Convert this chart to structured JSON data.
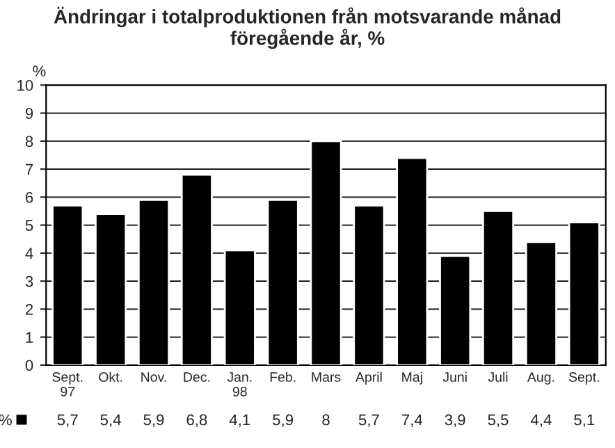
{
  "chart_data": {
    "type": "bar",
    "title": "Ändringar i totalproduktionen från motsvarande månad\nföregående år, %",
    "ylabel": "%",
    "categories": [
      "Sept.\n97",
      "Okt.",
      "Nov.",
      "Dec.",
      "Jan.\n98",
      "Feb.",
      "Mars",
      "April",
      "Maj",
      "Juni",
      "Juli",
      "Aug.",
      "Sept."
    ],
    "series": [
      {
        "name": "%",
        "color": "#000000",
        "values": [
          5.7,
          5.4,
          5.9,
          6.8,
          4.1,
          5.9,
          8,
          5.7,
          7.4,
          3.9,
          5.5,
          4.4,
          5.1
        ],
        "value_labels": [
          "5,7",
          "5,4",
          "5,9",
          "6,8",
          "4,1",
          "5,9",
          "8",
          "5,7",
          "7,4",
          "3,9",
          "5,5",
          "4,4",
          "5,1"
        ]
      }
    ],
    "ylim": [
      0,
      10
    ],
    "yticks": [
      0,
      1,
      2,
      3,
      4,
      5,
      6,
      7,
      8,
      9,
      10
    ],
    "grid": "y",
    "legend": "bottom left"
  }
}
